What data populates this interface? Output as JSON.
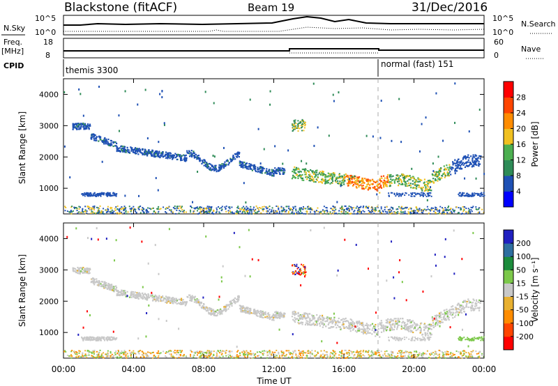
{
  "header": {
    "station": "Blackstone (fitACF)",
    "beam": "Beam 19",
    "date": "31/Dec/2016"
  },
  "summary": {
    "nsky_label": "N.Sky",
    "nsky_ticks": [
      "10^5",
      "10^0"
    ],
    "nsearch_label": "N.Search",
    "nsearch_ticks": [
      "10^5",
      "10^0"
    ],
    "freq_label": "Freq.",
    "freq_unit": "[MHz]",
    "freq_ticks": [
      "18",
      "8"
    ],
    "nave_label": "Nave",
    "nave_ticks": [
      "60",
      "0"
    ],
    "cpid_label": "CPID",
    "cpid_segments": [
      {
        "name": "themis 3300",
        "start": 0,
        "end": 18
      },
      {
        "name": "normal (fast) 151",
        "start": 18,
        "end": 24
      }
    ]
  },
  "chart_data": [
    {
      "type": "heatmap",
      "title": "Power",
      "ylabel": "Slant Range [km]",
      "ylim": [
        180,
        4500
      ],
      "xlim": [
        0,
        24
      ],
      "xlabel": "Time UT",
      "yticks": [
        "1000",
        "2000",
        "3000",
        "4000"
      ],
      "xticks": [
        "00:00",
        "04:00",
        "08:00",
        "12:00",
        "16:00",
        "20:00",
        "00:00"
      ],
      "colorbar": {
        "label": "Power [dB]",
        "ticks": [
          "4",
          "8",
          "12",
          "16",
          "20",
          "24",
          "28"
        ],
        "range": [
          0,
          32
        ],
        "colors": [
          "#0000ff",
          "#1e50b4",
          "#2e8b57",
          "#4caf50",
          "#f0c020",
          "#ff8c00",
          "#ff4500",
          "#ff0000"
        ]
      }
    },
    {
      "type": "heatmap",
      "title": "Velocity",
      "ylabel": "Slant Range [km]",
      "ylim": [
        180,
        4500
      ],
      "xlim": [
        0,
        24
      ],
      "xlabel": "Time UT",
      "yticks": [
        "1000",
        "2000",
        "3000",
        "4000"
      ],
      "xticks": [
        "00:00",
        "04:00",
        "08:00",
        "12:00",
        "16:00",
        "20:00",
        "00:00"
      ],
      "colorbar": {
        "label": "Velocity [m s⁻¹]",
        "ticks": [
          "200",
          "100",
          "50",
          "15",
          "-15",
          "-50",
          "-100",
          "-200"
        ],
        "colors": [
          "#2020c0",
          "#2e6fa0",
          "#1c8c3c",
          "#7cc84a",
          "#c8c8c8",
          "#e8b030",
          "#ff8c00",
          "#ff4500",
          "#ff0000"
        ]
      }
    }
  ],
  "colors": {
    "scatter_gray": "#c8c8c8",
    "power_blue": "#1e50b4"
  }
}
